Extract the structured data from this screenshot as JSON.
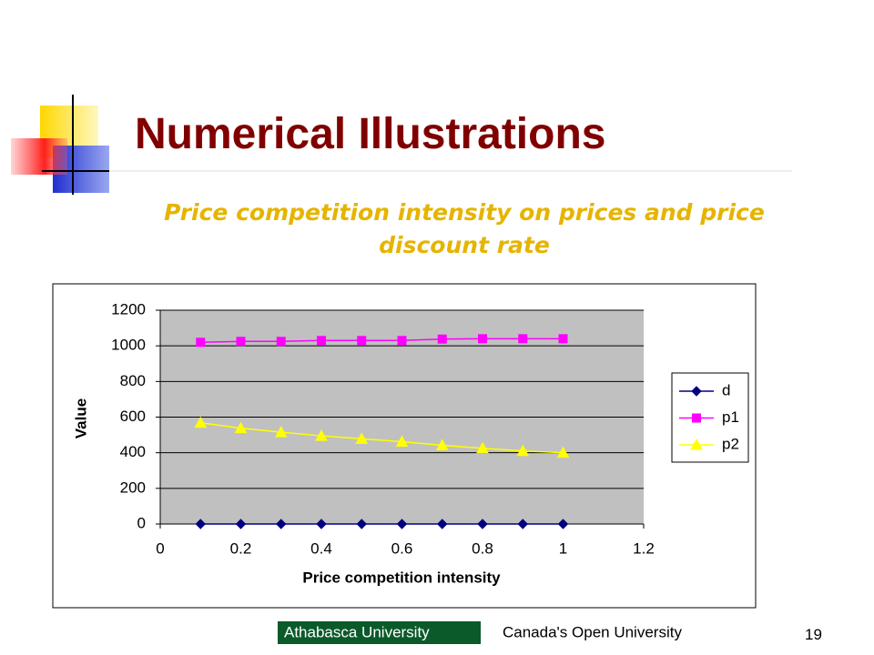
{
  "slide_title": "Numerical Illustrations",
  "subtitle": "Price competition intensity on prices and price discount rate",
  "chart_data": {
    "type": "line",
    "x": [
      0.1,
      0.2,
      0.3,
      0.4,
      0.5,
      0.6,
      0.7,
      0.8,
      0.9,
      1
    ],
    "series": [
      {
        "name": "d",
        "color": "#000080",
        "marker": "diamond",
        "values": [
          0,
          0,
          0,
          0,
          0,
          0,
          0,
          0,
          0,
          0
        ]
      },
      {
        "name": "p1",
        "color": "#ff00ff",
        "marker": "square",
        "values": [
          1020,
          1025,
          1025,
          1030,
          1030,
          1030,
          1038,
          1040,
          1040,
          1040
        ]
      },
      {
        "name": "p2",
        "color": "#ffff00",
        "marker": "triangle",
        "values": [
          568,
          538,
          515,
          495,
          478,
          462,
          442,
          425,
          410,
          400
        ]
      }
    ],
    "xlabel": "Price competition intensity",
    "ylabel": "Value",
    "xlim": [
      0,
      1.2
    ],
    "xticks": [
      0,
      0.2,
      0.4,
      0.6,
      0.8,
      1,
      1.2
    ],
    "ylim": [
      0,
      1200
    ],
    "yticks": [
      0,
      200,
      400,
      600,
      800,
      1000,
      1200
    ],
    "grid": true,
    "legend": "right",
    "plot_background": "#c0c0c0"
  },
  "footer": {
    "logo_left": "Athabasca University",
    "logo_right": "Canada's Open University",
    "page_number": "19"
  }
}
